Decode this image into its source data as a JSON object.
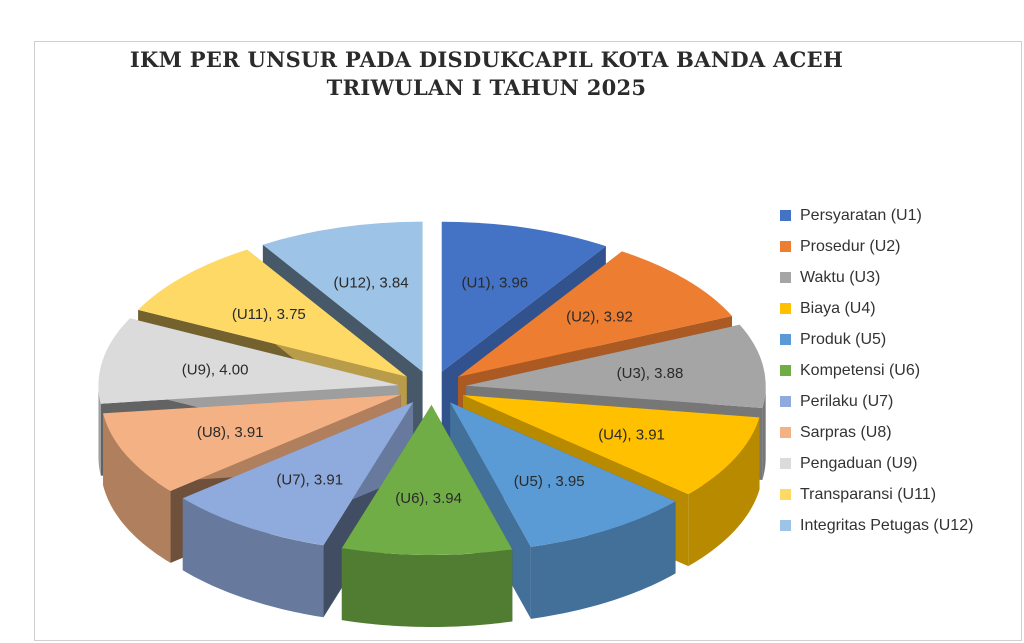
{
  "chart_data": {
    "type": "pie",
    "title_line1": "IKM PER UNSUR PADA DISDUKCAPIL KOTA BANDA ACEH",
    "title_line2": "TRIWULAN I TAHUN 2025",
    "legend_position": "right",
    "exploded": true,
    "three_d": true,
    "slices": [
      {
        "name": "Persyaratan (U1)",
        "label": "(U1), 3.96",
        "value": 3.96,
        "color": "#4472C4"
      },
      {
        "name": "Prosedur (U2)",
        "label": "(U2), 3.92",
        "value": 3.92,
        "color": "#ED7D31"
      },
      {
        "name": "Waktu (U3)",
        "label": "(U3), 3.88",
        "value": 3.88,
        "color": "#A5A5A5"
      },
      {
        "name": "Biaya (U4)",
        "label": "(U4), 3.91",
        "value": 3.91,
        "color": "#FFC000"
      },
      {
        "name": "Produk (U5)",
        "label": "(U5) , 3.95",
        "value": 3.95,
        "color": "#5B9BD5"
      },
      {
        "name": "Kompetensi (U6)",
        "label": "(U6), 3.94",
        "value": 3.94,
        "color": "#70AD47"
      },
      {
        "name": "Perilaku (U7)",
        "label": "(U7), 3.91",
        "value": 3.91,
        "color": "#8FAADC"
      },
      {
        "name": "Sarpras (U8)",
        "label": "(U8), 3.91",
        "value": 3.91,
        "color": "#F4B183"
      },
      {
        "name": "Pengaduan (U9)",
        "label": "(U9), 4.00",
        "value": 4.0,
        "color": "#DBDBDB"
      },
      {
        "name": "Transparansi (U11)",
        "label": "(U11), 3.75",
        "value": 3.75,
        "color": "#FFD966"
      },
      {
        "name": "Integritas Petugas (U12)",
        "label": "(U12), 3.84",
        "value": 3.84,
        "color": "#9DC3E6"
      }
    ]
  }
}
